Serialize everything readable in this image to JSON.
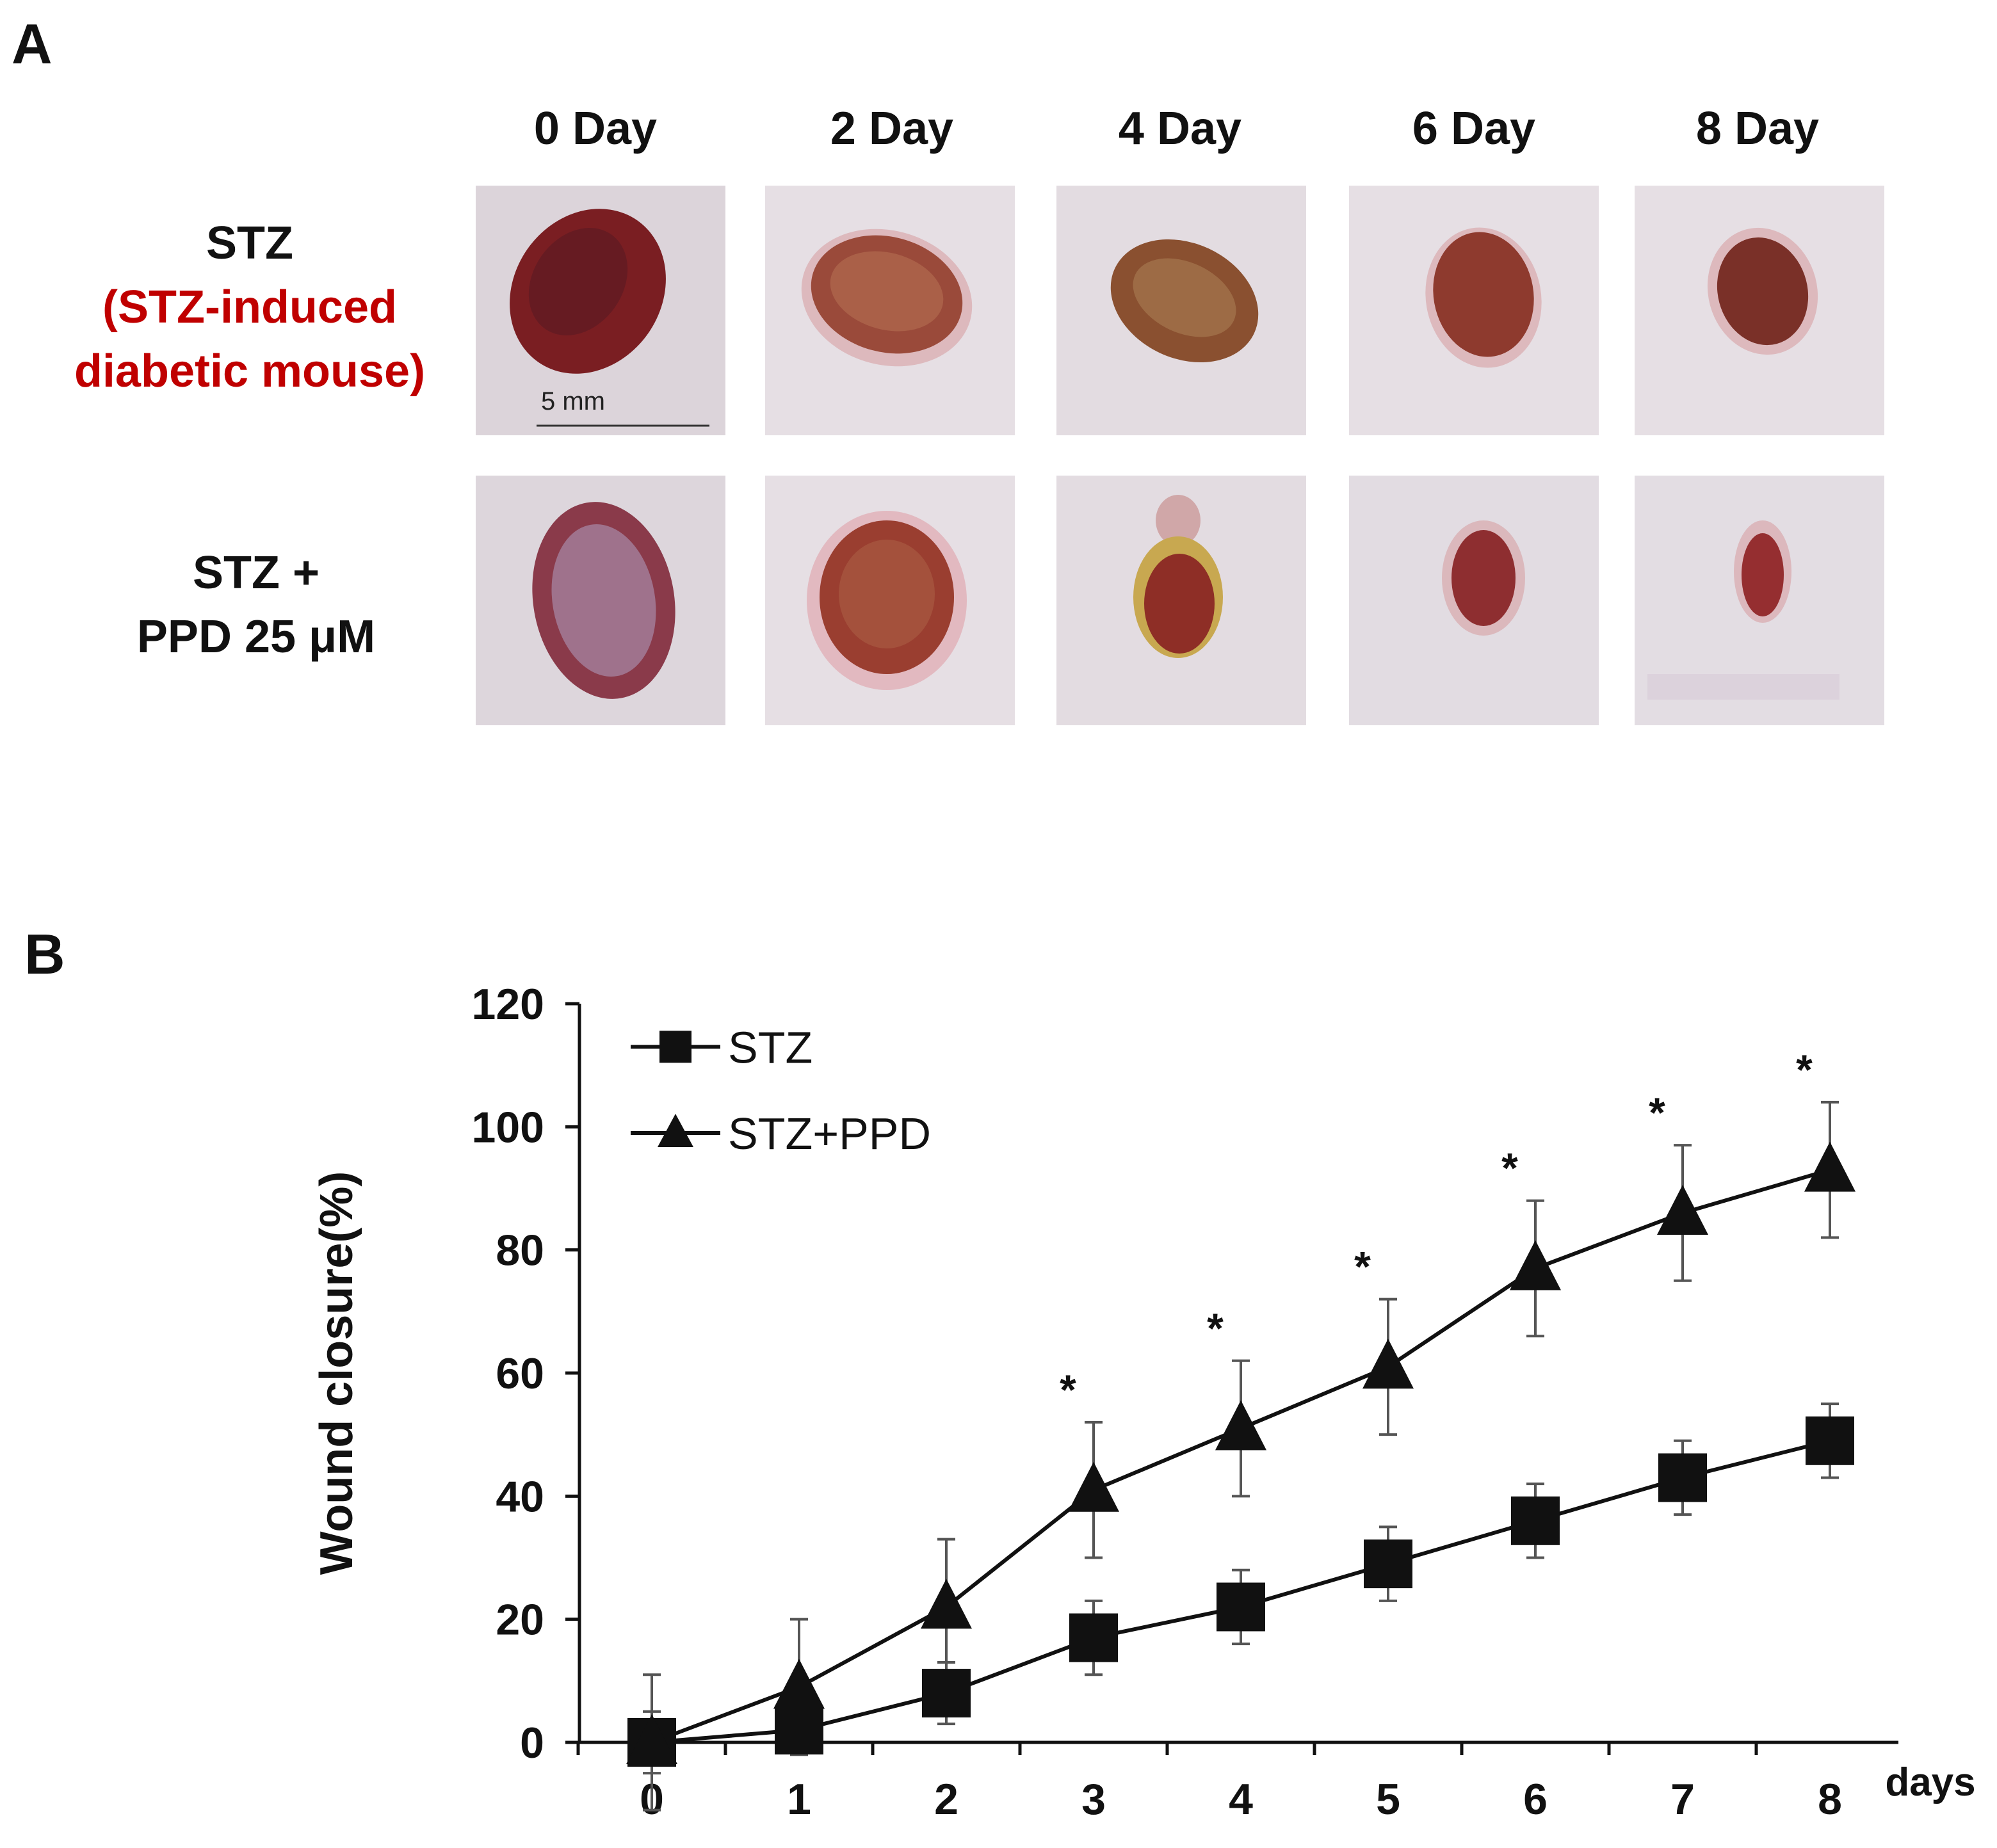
{
  "panel_a": {
    "label": "A",
    "days": [
      "0 Day",
      "2 Day",
      "4 Day",
      "6 Day",
      "8 Day"
    ],
    "rows": [
      {
        "line1": "STZ",
        "line2": "(STZ-induced",
        "line3": "diabetic mouse)"
      },
      {
        "line1": "STZ +",
        "line2": "PPD 25 μM"
      }
    ],
    "scale_bar": "5 mm"
  },
  "panel_b": {
    "label": "B"
  },
  "colors": {
    "accent_red": "#c00000",
    "wound_dark": "#7a1e22",
    "skin": "#e6dfe4"
  },
  "chart_data": {
    "type": "line",
    "xlabel": "days",
    "ylabel": "Wound closure(%)",
    "x": [
      0,
      1,
      2,
      3,
      4,
      5,
      6,
      7,
      8
    ],
    "x_tick_labels": [
      "0",
      "1",
      "2",
      "3",
      "4",
      "5",
      "6",
      "7",
      "8"
    ],
    "ylim": [
      0,
      120
    ],
    "y_ticks": [
      0,
      20,
      40,
      60,
      80,
      100,
      120
    ],
    "y_tick_labels": [
      "0",
      "20",
      "40",
      "60",
      "80",
      "100",
      "120"
    ],
    "legend_position": "top-left",
    "series": [
      {
        "name": "STZ",
        "marker": "square",
        "values": [
          0,
          2,
          8,
          17,
          22,
          29,
          36,
          43,
          49
        ],
        "errors": [
          5,
          3,
          5,
          6,
          6,
          6,
          6,
          6,
          6
        ]
      },
      {
        "name": "STZ+PPD",
        "marker": "triangle",
        "values": [
          0,
          9,
          22,
          41,
          51,
          61,
          77,
          86,
          93
        ],
        "errors": [
          11,
          11,
          11,
          11,
          11,
          11,
          11,
          11,
          11
        ]
      }
    ],
    "significance": {
      "symbol": "*",
      "x": [
        3,
        4,
        5,
        6,
        7,
        8
      ]
    }
  }
}
